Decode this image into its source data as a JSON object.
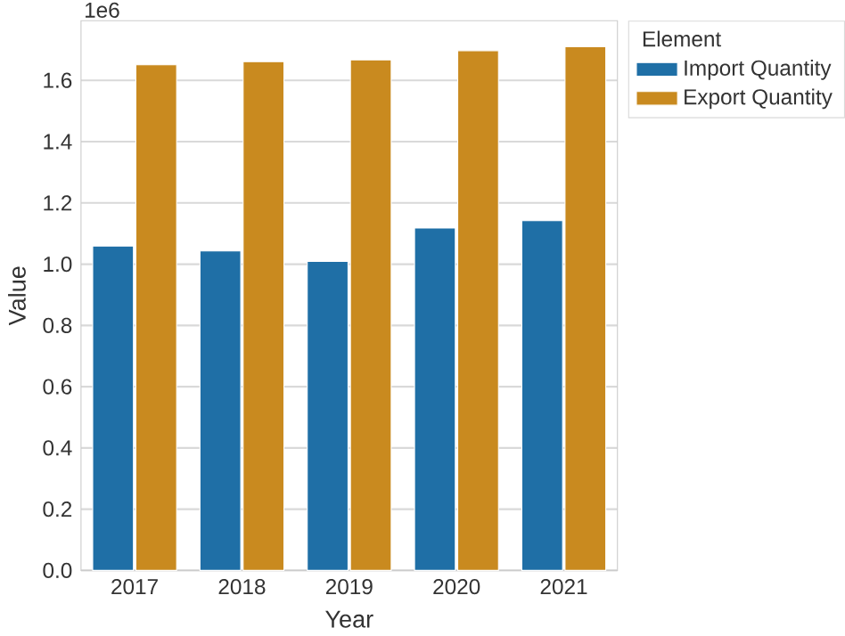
{
  "chart_data": {
    "type": "bar",
    "xlabel": "Year",
    "ylabel": "Value",
    "legend_title": "Element",
    "categories": [
      "2017",
      "2018",
      "2019",
      "2020",
      "2021"
    ],
    "series": [
      {
        "name": "Import Quantity",
        "color": "#1f6fa6",
        "values": [
          1.059,
          1.043,
          1.009,
          1.118,
          1.142
        ]
      },
      {
        "name": "Export Quantity",
        "color": "#c98a1f",
        "values": [
          1.651,
          1.661,
          1.667,
          1.697,
          1.71
        ]
      }
    ],
    "ylim": [
      0,
      1.795
    ],
    "yticks": [
      {
        "value": 0,
        "label": "0.0"
      },
      0.2,
      0.4,
      0.6,
      0.8,
      {
        "value": 1,
        "label": "1.0"
      },
      1.2,
      1.4,
      1.6
    ],
    "annotations": [
      "1e6"
    ],
    "grid": "y",
    "legend": "top right"
  }
}
